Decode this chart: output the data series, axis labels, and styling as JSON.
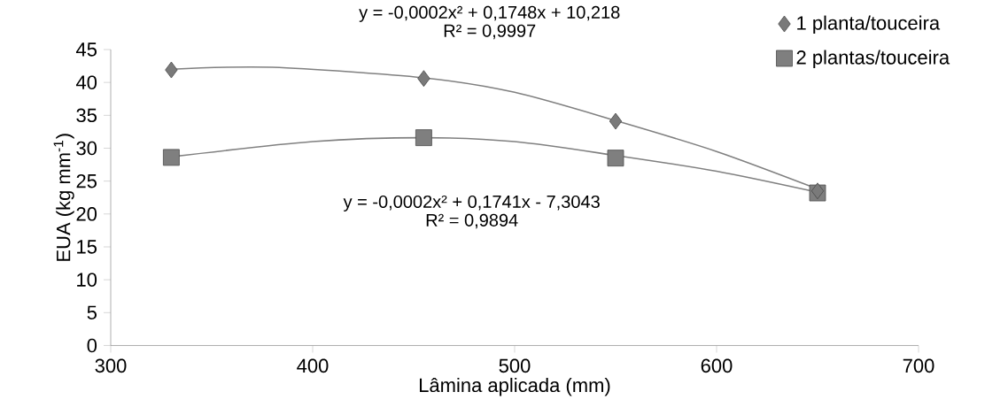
{
  "chart_data": {
    "type": "scatter",
    "xlabel": "Lâmina aplicada (mm)",
    "ylabel": "EUA (kg mm$^{-1}$)",
    "xlim": [
      300,
      700
    ],
    "xticks": [
      300,
      400,
      500,
      600,
      700
    ],
    "ylim": [
      0,
      45
    ],
    "yticks": [
      0,
      5,
      10,
      15,
      20,
      25,
      30,
      35,
      40,
      45
    ],
    "grid": false,
    "legend": "top right",
    "annotations": [
      "y = -0,0002x² + 0,1748x + 10,218",
      "R² = 0,9997",
      "y = -0,0002x² + 0,1741x - 7,3043",
      "R² = 0,9894"
    ],
    "series": [
      {
        "name": "1 planta/touceira",
        "marker": "diamond",
        "color": "#7a7a7a",
        "x": [
          330,
          455,
          550,
          650
        ],
        "values": [
          41.9,
          40.6,
          34.1,
          23.5
        ]
      },
      {
        "name": "2 plantas/touceira",
        "marker": "square",
        "color": "#7f7f7f",
        "x": [
          330,
          455,
          550,
          650
        ],
        "values": [
          28.6,
          31.6,
          28.5,
          23.2
        ]
      },
      {
        "type": "line",
        "marker": "none",
        "color": "#808080",
        "x": [
          330,
          380,
          455,
          500,
          550,
          600,
          650
        ],
        "values": [
          42.0,
          42.3,
          40.7,
          38.5,
          34.2,
          29.5,
          23.8
        ]
      },
      {
        "type": "line",
        "marker": "none",
        "color": "#808080",
        "x": [
          330,
          400,
          455,
          500,
          550,
          600,
          650
        ],
        "values": [
          28.7,
          31.0,
          31.6,
          31.0,
          28.9,
          26.5,
          23.3
        ]
      }
    ]
  }
}
